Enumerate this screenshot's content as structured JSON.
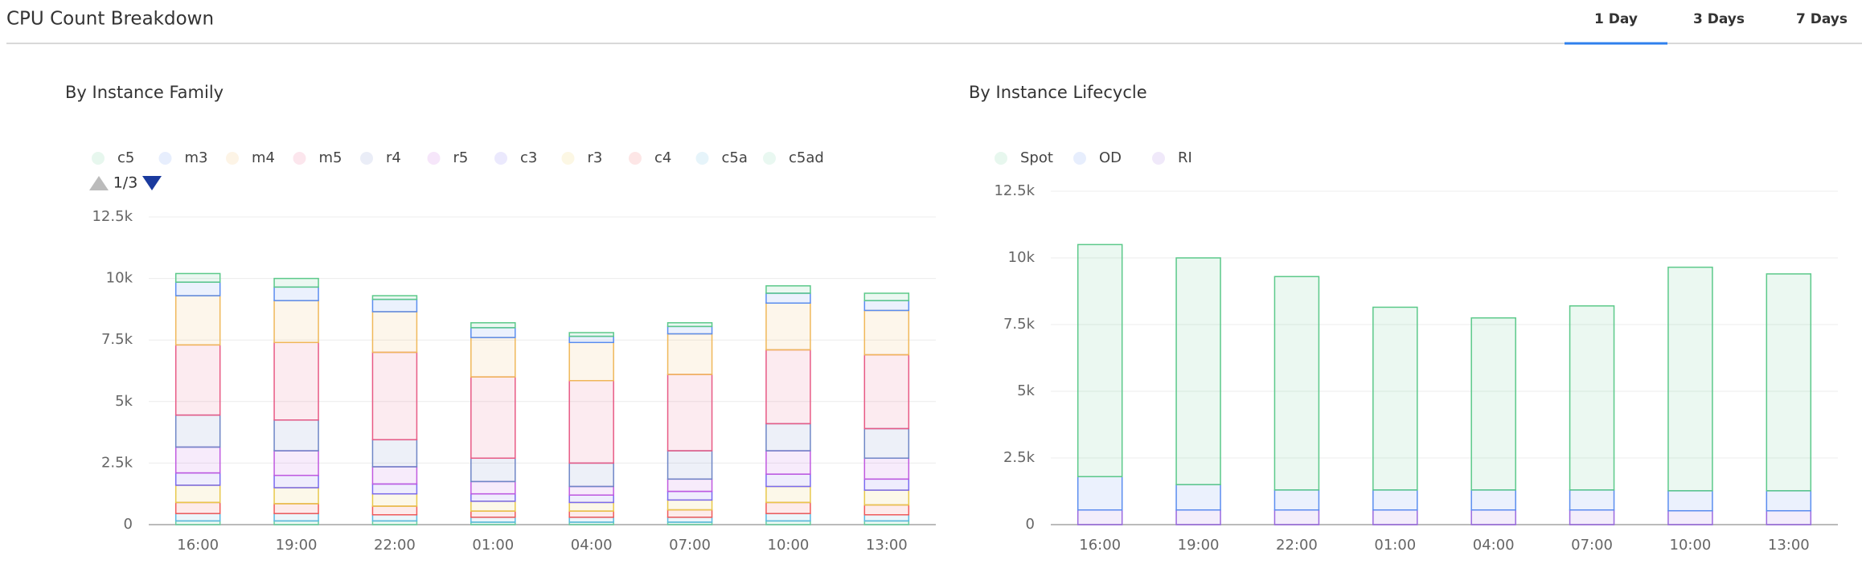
{
  "header": {
    "title": "CPU Count Breakdown",
    "tabs": [
      "1 Day",
      "3 Days",
      "7 Days"
    ],
    "active_tab": 0
  },
  "chart_data": [
    {
      "type": "stacked_bar",
      "title": "By Instance Family",
      "legend_page": "1/3",
      "categories": [
        "16:00",
        "19:00",
        "22:00",
        "01:00",
        "04:00",
        "07:00",
        "10:00",
        "13:00"
      ],
      "ylim": [
        0,
        12500
      ],
      "yticks": [
        0,
        {
          "value": 2500,
          "label": "2.5k"
        },
        {
          "value": 5000,
          "label": "5k"
        },
        {
          "value": 7500,
          "label": "7.5k"
        },
        {
          "value": 10000,
          "label": "10k"
        },
        {
          "value": 12500,
          "label": "12.5k"
        }
      ],
      "grid": true,
      "series": [
        {
          "name": "c5",
          "color": "#5cc98a",
          "values": [
            350,
            350,
            150,
            200,
            150,
            150,
            300,
            300
          ]
        },
        {
          "name": "m3",
          "color": "#5b8def",
          "values": [
            550,
            550,
            500,
            400,
            250,
            300,
            400,
            400
          ]
        },
        {
          "name": "m4",
          "color": "#f0b85a",
          "values": [
            2000,
            1700,
            1650,
            1600,
            1550,
            1650,
            1900,
            1800
          ]
        },
        {
          "name": "m5",
          "color": "#e85a85",
          "values": [
            2850,
            3150,
            3550,
            3300,
            3350,
            3100,
            3000,
            3000
          ]
        },
        {
          "name": "r4",
          "color": "#6f86c6",
          "values": [
            1300,
            1250,
            1100,
            950,
            950,
            1150,
            1100,
            1200
          ]
        },
        {
          "name": "r5",
          "color": "#c05ae0",
          "values": [
            1050,
            1000,
            700,
            500,
            350,
            500,
            950,
            850
          ]
        },
        {
          "name": "c3",
          "color": "#7a6af0",
          "values": [
            500,
            500,
            400,
            300,
            300,
            350,
            500,
            450
          ]
        },
        {
          "name": "r3",
          "color": "#e8c84a",
          "values": [
            700,
            650,
            500,
            400,
            350,
            400,
            650,
            600
          ]
        },
        {
          "name": "c4",
          "color": "#f05a5a",
          "values": [
            450,
            400,
            350,
            250,
            250,
            300,
            450,
            400
          ]
        },
        {
          "name": "c5a",
          "color": "#5ab8e0",
          "values": [
            300,
            300,
            250,
            200,
            200,
            200,
            300,
            250
          ]
        },
        {
          "name": "c5ad",
          "color": "#6ad0a0",
          "values": [
            150,
            150,
            150,
            100,
            100,
            100,
            150,
            150
          ]
        }
      ]
    },
    {
      "type": "stacked_bar",
      "title": "By Instance Lifecycle",
      "categories": [
        "16:00",
        "19:00",
        "22:00",
        "01:00",
        "04:00",
        "07:00",
        "10:00",
        "13:00"
      ],
      "ylim": [
        0,
        12500
      ],
      "yticks": [
        0,
        {
          "value": 2500,
          "label": "2.5k"
        },
        {
          "value": 5000,
          "label": "5k"
        },
        {
          "value": 7500,
          "label": "7.5k"
        },
        {
          "value": 10000,
          "label": "10k"
        },
        {
          "value": 12500,
          "label": "12.5k"
        }
      ],
      "grid": true,
      "series": [
        {
          "name": "Spot",
          "color": "#5cc98a",
          "values": [
            8700,
            8500,
            8000,
            6850,
            6450,
            6900,
            8380,
            8130
          ]
        },
        {
          "name": "OD",
          "color": "#5b8def",
          "values": [
            1250,
            950,
            750,
            750,
            750,
            750,
            750,
            750
          ]
        },
        {
          "name": "RI",
          "color": "#9a6ae0",
          "values": [
            550,
            550,
            550,
            550,
            550,
            550,
            520,
            520
          ]
        }
      ]
    }
  ]
}
